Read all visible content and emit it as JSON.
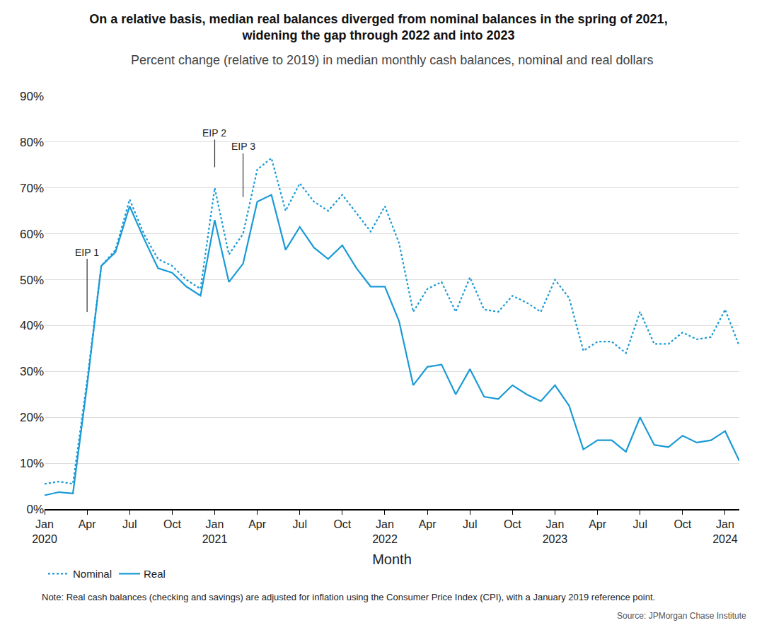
{
  "chart_data": {
    "type": "line",
    "title": [
      "On a relative basis, median real balances diverged from nominal balances in the spring of 2021,",
      "widening the gap through 2022 and into 2023"
    ],
    "subtitle": "Percent change (relative to 2019) in median monthly cash balances, nominal and real dollars",
    "x_label": "Month",
    "note": "Note: Real cash balances (checking and savings) are adjusted for inflation using the Consumer Price Index (CPI), with a January 2019 reference point.",
    "source": "Source: JPMorgan Chase Institute",
    "categories": [
      "Jan 2020",
      null,
      null,
      "Apr",
      null,
      null,
      "Jul",
      null,
      null,
      "Oct",
      null,
      null,
      "Jan 2021",
      null,
      null,
      "Apr",
      null,
      null,
      "Jul",
      null,
      null,
      "Oct",
      null,
      null,
      "Jan 2022",
      null,
      null,
      "Apr",
      null,
      null,
      "Jul",
      null,
      null,
      "Oct",
      null,
      null,
      "Jan 2023",
      null,
      null,
      "Apr",
      null,
      null,
      "Jul",
      null,
      null,
      "Oct",
      null,
      null,
      "Jan 2024",
      null
    ],
    "series": [
      {
        "name": "Nominal",
        "color": "#1a9ad6",
        "line_style": "dotted",
        "values": [
          5.5,
          6,
          5.5,
          28,
          53,
          56.5,
          67.5,
          60,
          54.5,
          53,
          50,
          48,
          70,
          55.5,
          60,
          74,
          76.5,
          65,
          71,
          67,
          65,
          68.5,
          64.5,
          60.5,
          66,
          58,
          43,
          48,
          49.5,
          43,
          50.5,
          43.5,
          43,
          46.5,
          45,
          43,
          50,
          46,
          34.5,
          36.5,
          36.5,
          34,
          43,
          36,
          36,
          38.5,
          37,
          37.5,
          43.5,
          35.5
        ]
      },
      {
        "name": "Real",
        "color": "#1a9ad6",
        "line_style": "solid",
        "values": [
          3,
          3.7,
          3.4,
          27,
          53,
          56,
          66,
          59,
          52.5,
          51.5,
          48.5,
          46.5,
          63,
          49.5,
          53.5,
          67,
          68.5,
          56.5,
          61.5,
          57,
          54.5,
          57.5,
          52.5,
          48.5,
          48.5,
          41,
          27,
          31,
          31.5,
          25,
          30.5,
          24.5,
          24,
          27,
          25,
          23.5,
          27,
          22.5,
          13,
          15,
          15,
          12.5,
          20,
          14,
          13.5,
          16,
          14.5,
          15,
          17,
          10.5
        ]
      }
    ],
    "annotations": [
      {
        "text": "EIP 1",
        "x": 3,
        "y": 43,
        "text_y": 56
      },
      {
        "text": "EIP 2",
        "x": 12,
        "y": 74.5,
        "text_y": 82
      },
      {
        "text": "EIP 3",
        "x": 14,
        "y": 68,
        "text_y": 79
      }
    ],
    "ylim": [
      0,
      90
    ],
    "yticks": [
      {
        "value": 0,
        "label": "0%"
      },
      {
        "value": 10,
        "label": "10%"
      },
      {
        "value": 20,
        "label": "20%"
      },
      {
        "value": 30,
        "label": "30%"
      },
      {
        "value": 40,
        "label": "40%"
      },
      {
        "value": 50,
        "label": "50%"
      },
      {
        "value": 60,
        "label": "60%"
      },
      {
        "value": 70,
        "label": "70%"
      },
      {
        "value": 80,
        "label": "80%"
      },
      {
        "value": 90,
        "label": "90%"
      }
    ],
    "grid": true,
    "legend": "bottom left"
  }
}
